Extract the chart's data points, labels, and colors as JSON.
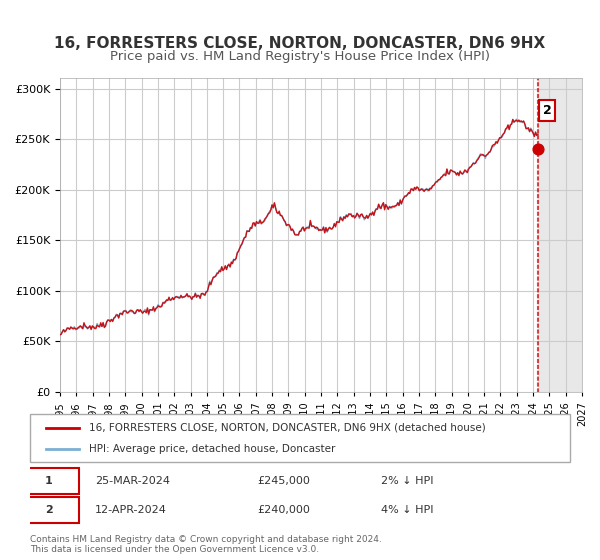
{
  "title": "16, FORRESTERS CLOSE, NORTON, DONCASTER, DN6 9HX",
  "subtitle": "Price paid vs. HM Land Registry's House Price Index (HPI)",
  "title_fontsize": 11,
  "subtitle_fontsize": 9.5,
  "legend_line1": "16, FORRESTERS CLOSE, NORTON, DONCASTER, DN6 9HX (detached house)",
  "legend_line2": "HPI: Average price, detached house, Doncaster",
  "footer": "Contains HM Land Registry data © Crown copyright and database right 2024.\nThis data is licensed under the Open Government Licence v3.0.",
  "transaction1_label": "1",
  "transaction1_date": "25-MAR-2024",
  "transaction1_price": "£245,000",
  "transaction1_hpi": "2% ↓ HPI",
  "transaction2_label": "2",
  "transaction2_date": "12-APR-2024",
  "transaction2_price": "£240,000",
  "transaction2_hpi": "4% ↓ HPI",
  "hpi_color": "#7cafd4",
  "price_color": "#cc0000",
  "marker_color": "#cc0000",
  "shaded_color": "#e8e8e8",
  "annotation_box_color": "#cc0000",
  "background_color": "#ffffff",
  "grid_color": "#cccccc",
  "ylim": [
    0,
    310000
  ],
  "yticks": [
    0,
    50000,
    100000,
    150000,
    200000,
    250000,
    300000
  ],
  "xlim_start": 1995.0,
  "xlim_end": 2027.0,
  "xticks": [
    1995,
    1996,
    1997,
    1998,
    1999,
    2000,
    2001,
    2002,
    2003,
    2004,
    2005,
    2006,
    2007,
    2008,
    2009,
    2010,
    2011,
    2012,
    2013,
    2014,
    2015,
    2016,
    2017,
    2018,
    2019,
    2020,
    2021,
    2022,
    2023,
    2024,
    2025,
    2026,
    2027
  ],
  "shaded_region_start": 2024.3,
  "shaded_region_end": 2027.0,
  "transaction_x1": 2024.23,
  "transaction_x2": 2024.28,
  "transaction_y1": 245000,
  "transaction_y2": 240000
}
